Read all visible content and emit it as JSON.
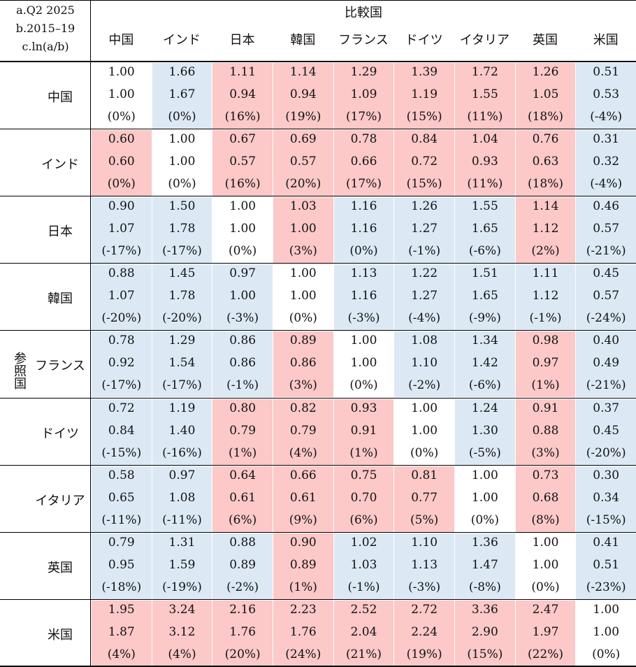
{
  "corner": {
    "a": "a.Q2 2025",
    "b": "b.2015–19",
    "c": "c.ln(a/b)"
  },
  "compare_label": "比較国",
  "reference_label": "参照国",
  "countries": [
    "中国",
    "インド",
    "日本",
    "韓国",
    "フランス",
    "ドイツ",
    "イタリア",
    "英国",
    "米国"
  ],
  "colors": {
    "red": "#fcc8c8",
    "blue": "#dce9f5",
    "white": "#ffffff"
  },
  "rows": [
    {
      "name": "中国",
      "a": [
        "1.00",
        "1.66",
        "1.11",
        "1.14",
        "1.29",
        "1.39",
        "1.72",
        "1.26",
        "0.51"
      ],
      "b": [
        "1.00",
        "1.67",
        "0.94",
        "0.94",
        "1.09",
        "1.19",
        "1.55",
        "1.05",
        "0.53"
      ],
      "c": [
        "(0%)",
        "(0%)",
        "(16%)",
        "(19%)",
        "(17%)",
        "(15%)",
        "(11%)",
        "(18%)",
        "(-4%)"
      ],
      "shade": [
        "w",
        "b",
        "r",
        "r",
        "r",
        "r",
        "r",
        "r",
        "b"
      ]
    },
    {
      "name": "インド",
      "a": [
        "0.60",
        "1.00",
        "0.67",
        "0.69",
        "0.78",
        "0.84",
        "1.04",
        "0.76",
        "0.31"
      ],
      "b": [
        "0.60",
        "1.00",
        "0.57",
        "0.57",
        "0.66",
        "0.72",
        "0.93",
        "0.63",
        "0.32"
      ],
      "c": [
        "(0%)",
        "(0%)",
        "(16%)",
        "(20%)",
        "(17%)",
        "(15%)",
        "(11%)",
        "(18%)",
        "(-4%)"
      ],
      "shade": [
        "r",
        "w",
        "r",
        "r",
        "r",
        "r",
        "r",
        "r",
        "b"
      ]
    },
    {
      "name": "日本",
      "a": [
        "0.90",
        "1.50",
        "1.00",
        "1.03",
        "1.16",
        "1.26",
        "1.55",
        "1.14",
        "0.46"
      ],
      "b": [
        "1.07",
        "1.78",
        "1.00",
        "1.00",
        "1.16",
        "1.27",
        "1.65",
        "1.12",
        "0.57"
      ],
      "c": [
        "(-17%)",
        "(-17%)",
        "(0%)",
        "(3%)",
        "(0%)",
        "(-1%)",
        "(-6%)",
        "(2%)",
        "(-21%)"
      ],
      "shade": [
        "b",
        "b",
        "w",
        "r",
        "b",
        "b",
        "b",
        "r",
        "b"
      ]
    },
    {
      "name": "韓国",
      "a": [
        "0.88",
        "1.45",
        "0.97",
        "1.00",
        "1.13",
        "1.22",
        "1.51",
        "1.11",
        "0.45"
      ],
      "b": [
        "1.07",
        "1.78",
        "1.00",
        "1.00",
        "1.16",
        "1.27",
        "1.65",
        "1.12",
        "0.57"
      ],
      "c": [
        "(-20%)",
        "(-20%)",
        "(-3%)",
        "(0%)",
        "(-3%)",
        "(-4%)",
        "(-9%)",
        "(-1%)",
        "(-24%)"
      ],
      "shade": [
        "b",
        "b",
        "b",
        "w",
        "b",
        "b",
        "b",
        "b",
        "b"
      ]
    },
    {
      "name": "フランス",
      "a": [
        "0.78",
        "1.29",
        "0.86",
        "0.89",
        "1.00",
        "1.08",
        "1.34",
        "0.98",
        "0.40"
      ],
      "b": [
        "0.92",
        "1.54",
        "0.86",
        "0.86",
        "1.00",
        "1.10",
        "1.42",
        "0.97",
        "0.49"
      ],
      "c": [
        "(-17%)",
        "(-17%)",
        "(-1%)",
        "(3%)",
        "(0%)",
        "(-2%)",
        "(-6%)",
        "(1%)",
        "(-21%)"
      ],
      "shade": [
        "b",
        "b",
        "b",
        "r",
        "w",
        "b",
        "b",
        "r",
        "b"
      ]
    },
    {
      "name": "ドイツ",
      "a": [
        "0.72",
        "1.19",
        "0.80",
        "0.82",
        "0.93",
        "1.00",
        "1.24",
        "0.91",
        "0.37"
      ],
      "b": [
        "0.84",
        "1.40",
        "0.79",
        "0.79",
        "0.91",
        "1.00",
        "1.30",
        "0.88",
        "0.45"
      ],
      "c": [
        "(-15%)",
        "(-16%)",
        "(1%)",
        "(4%)",
        "(1%)",
        "(0%)",
        "(-5%)",
        "(3%)",
        "(-20%)"
      ],
      "shade": [
        "b",
        "b",
        "r",
        "r",
        "r",
        "w",
        "b",
        "r",
        "b"
      ]
    },
    {
      "name": "イタリア",
      "a": [
        "0.58",
        "0.97",
        "0.64",
        "0.66",
        "0.75",
        "0.81",
        "1.00",
        "0.73",
        "0.30"
      ],
      "b": [
        "0.65",
        "1.08",
        "0.61",
        "0.61",
        "0.70",
        "0.77",
        "1.00",
        "0.68",
        "0.34"
      ],
      "c": [
        "(-11%)",
        "(-11%)",
        "(6%)",
        "(9%)",
        "(6%)",
        "(5%)",
        "(0%)",
        "(8%)",
        "(-15%)"
      ],
      "shade": [
        "b",
        "b",
        "r",
        "r",
        "r",
        "r",
        "w",
        "r",
        "b"
      ]
    },
    {
      "name": "英国",
      "a": [
        "0.79",
        "1.31",
        "0.88",
        "0.90",
        "1.02",
        "1.10",
        "1.36",
        "1.00",
        "0.41"
      ],
      "b": [
        "0.95",
        "1.59",
        "0.89",
        "0.89",
        "1.03",
        "1.13",
        "1.47",
        "1.00",
        "0.51"
      ],
      "c": [
        "(-18%)",
        "(-19%)",
        "(-2%)",
        "(1%)",
        "(-1%)",
        "(-3%)",
        "(-8%)",
        "(0%)",
        "(-23%)"
      ],
      "shade": [
        "b",
        "b",
        "b",
        "r",
        "b",
        "b",
        "b",
        "w",
        "b"
      ]
    },
    {
      "name": "米国",
      "a": [
        "1.95",
        "3.24",
        "2.16",
        "2.23",
        "2.52",
        "2.72",
        "3.36",
        "2.47",
        "1.00"
      ],
      "b": [
        "1.87",
        "3.12",
        "1.76",
        "1.76",
        "2.04",
        "2.24",
        "2.90",
        "1.97",
        "1.00"
      ],
      "c": [
        "(4%)",
        "(4%)",
        "(20%)",
        "(24%)",
        "(21%)",
        "(19%)",
        "(15%)",
        "(22%)",
        "(0%)"
      ],
      "shade": [
        "r",
        "r",
        "r",
        "r",
        "r",
        "r",
        "r",
        "r",
        "w"
      ]
    }
  ]
}
